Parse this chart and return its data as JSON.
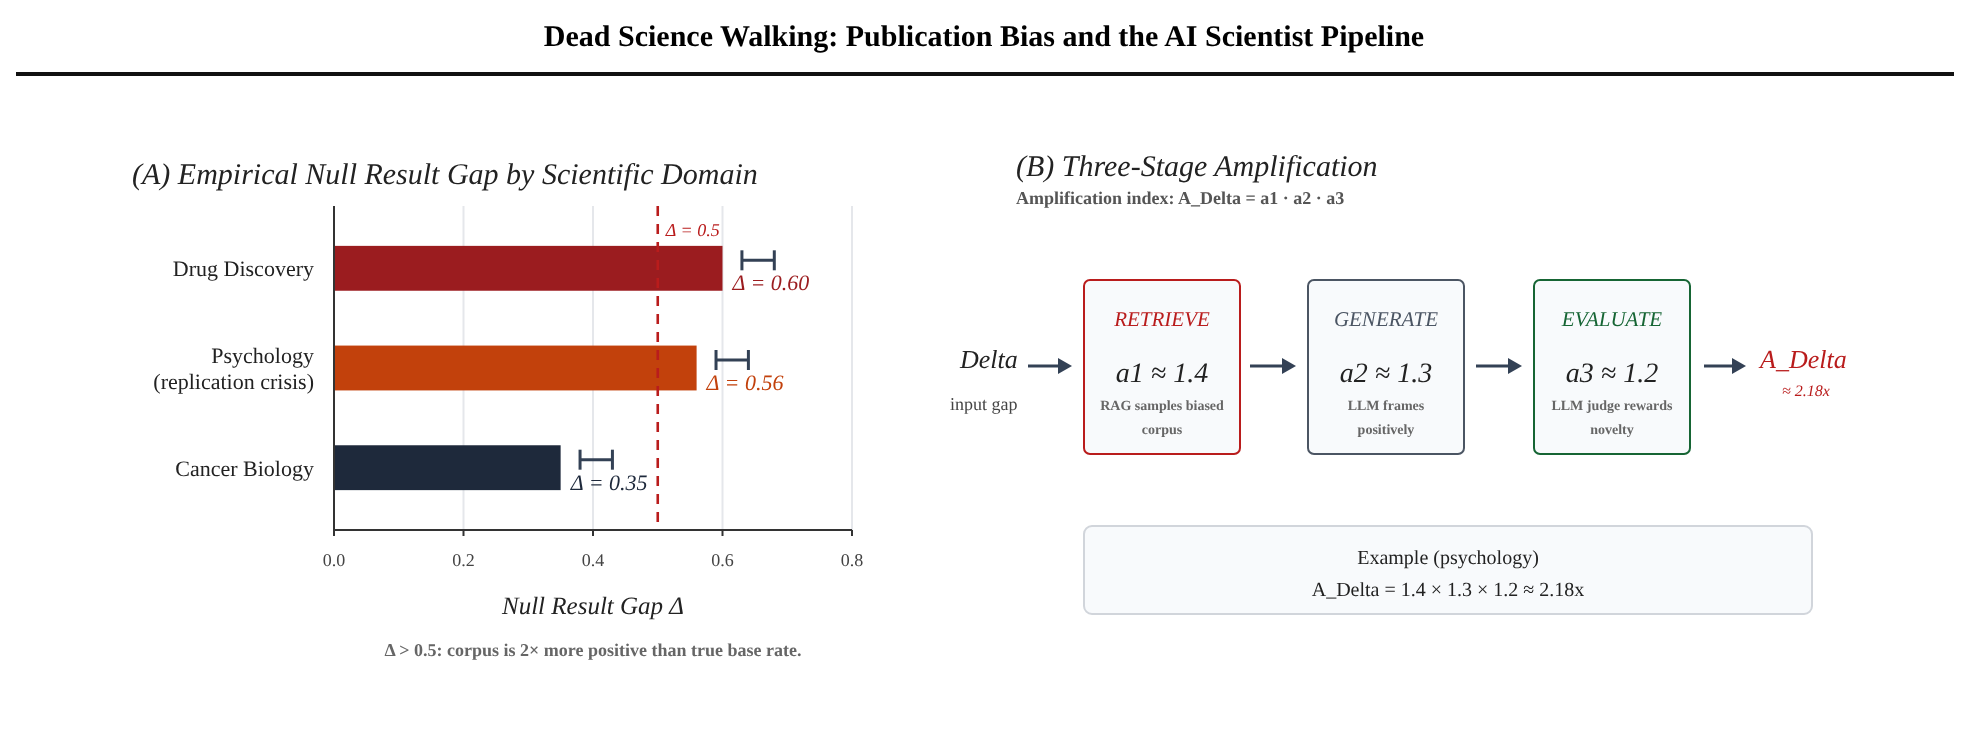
{
  "chart_data": [
    {
      "type": "bar",
      "orientation": "horizontal",
      "title": "Dead Science Walking: Publication Bias and the AI Scientist Pipeline",
      "subtitle": "(A) Empirical Null Result Gap by Scientific Domain",
      "xlabel": "Null Result Gap Δ",
      "categories": [
        "Drug Discovery",
        "Psychology (replication crisis)",
        "Cancer Biology"
      ],
      "values": [
        0.6,
        0.56,
        0.35
      ],
      "colors": [
        "#9b1c1f",
        "#c2410c",
        "#1e293b"
      ],
      "errors": [
        [
          0.63,
          0.68
        ],
        [
          0.59,
          0.64
        ],
        [
          0.38,
          0.43
        ]
      ],
      "value_labels": [
        "Δ = 0.60",
        "Δ = 0.56",
        "Δ = 0.35"
      ],
      "xlim": [
        0,
        0.8
      ],
      "xticks": [
        {
          "value": 0,
          "label": "0.0"
        },
        {
          "value": 0.2,
          "label": "0.2"
        },
        {
          "value": 0.4,
          "label": "0.4"
        },
        {
          "value": 0.6,
          "label": "0.6"
        },
        {
          "value": 0.8,
          "label": "0.8"
        }
      ],
      "grid": "x",
      "ref_lines": [
        {
          "axis": "x",
          "value": 0.5,
          "label": "Δ = 0.5",
          "color": "#b91c1c",
          "line_style": "dashed"
        }
      ],
      "annotations": [
        "Δ > 0.5: corpus is 2× more positive than true base rate."
      ]
    },
    {
      "type": "other",
      "title": "(B) Three-Stage Amplification",
      "subtitle": "Amplification index: A_Delta = a1 · a2 · a3",
      "annotations": [
        "Delta",
        "input gap",
        "RETRIEVE",
        "a1 ≈ 1.4",
        "RAG samples biased corpus",
        "GENERATE",
        "a2 ≈ 1.3",
        "LLM frames positively",
        "EVALUATE",
        "a3 ≈ 1.2",
        "LLM judge rewards novelty",
        "A_Delta",
        "≈ 2.18x",
        "Example (psychology)",
        "A_Delta = 1.4 × 1.3 × 1.2 ≈ 2.18x"
      ]
    }
  ]
}
